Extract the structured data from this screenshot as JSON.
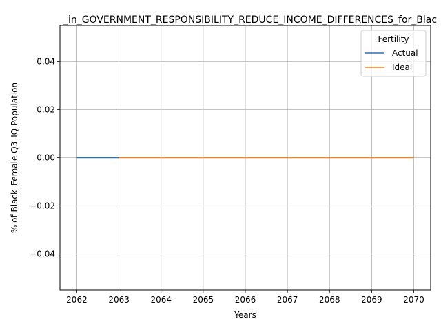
{
  "chart_data": {
    "type": "line",
    "title": "_in_GOVERNMENT_RESPONSIBILITY_REDUCE_INCOME_DIFFERENCES_for_Blac",
    "xlabel": "Years",
    "ylabel": "% of Black_Female Q3_IQ Population",
    "xlim": [
      2061.6,
      2070.4
    ],
    "ylim": [
      -0.055,
      0.055
    ],
    "x_ticks": [
      "2062",
      "2063",
      "2064",
      "2065",
      "2066",
      "2067",
      "2068",
      "2069",
      "2070"
    ],
    "y_ticks": [
      "0.04",
      "0.02",
      "0.00",
      "−0.02",
      "−0.04"
    ],
    "grid": true,
    "legend": {
      "title": "Fertility",
      "placement": "top-right"
    },
    "series": [
      {
        "name": "Actual",
        "color": "#1f77b4",
        "x": [
          2062,
          2063
        ],
        "y": [
          0,
          0
        ]
      },
      {
        "name": "Ideal",
        "color": "#ff7f0e",
        "x": [
          2063,
          2064,
          2065,
          2066,
          2067,
          2068,
          2069,
          2070
        ],
        "y": [
          0,
          0,
          0,
          0,
          0,
          0,
          0,
          0
        ]
      }
    ]
  }
}
